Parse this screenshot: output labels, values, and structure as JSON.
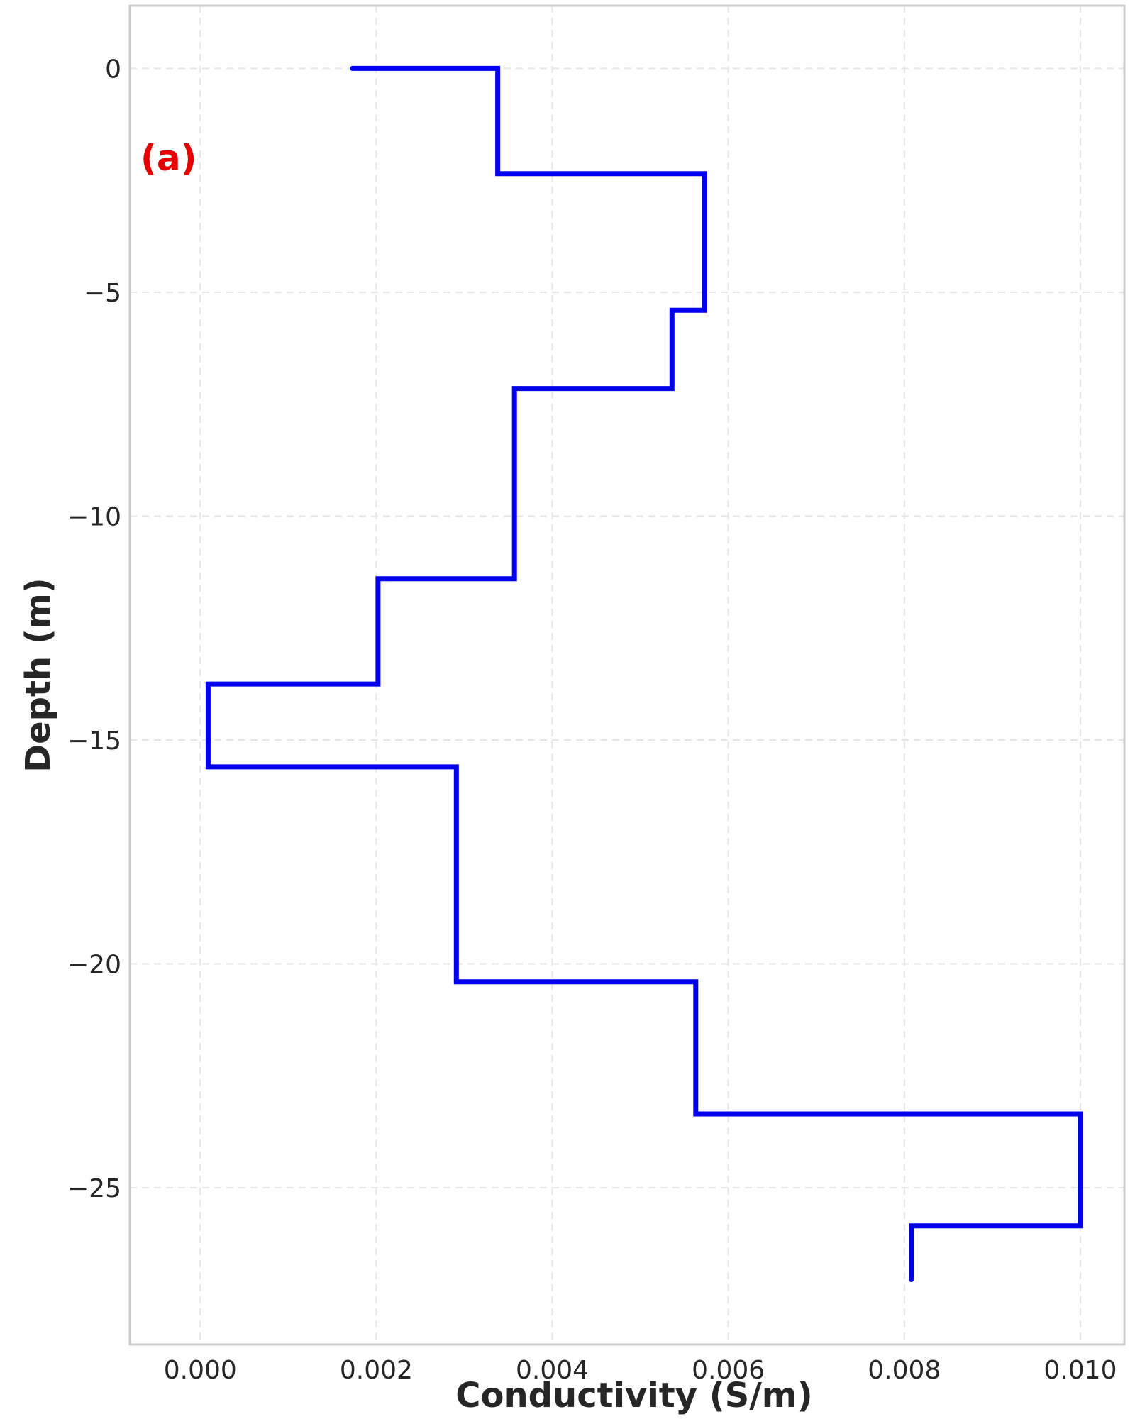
{
  "chart_data": {
    "type": "line",
    "xlabel": "Conductivity (S/m)",
    "ylabel": "Depth (m)",
    "annotation": "(a)",
    "annotation_color": "#e60000",
    "line_color": "#0000ee",
    "grid": true,
    "xlim": [
      -0.0008,
      0.0105
    ],
    "ylim": [
      -28.5,
      1.4
    ],
    "x_ticks": [
      {
        "value": 0.0,
        "label": "0.000"
      },
      {
        "value": 0.002,
        "label": "0.002"
      },
      {
        "value": 0.004,
        "label": "0.004"
      },
      {
        "value": 0.006,
        "label": "0.006"
      },
      {
        "value": 0.008,
        "label": "0.008"
      },
      {
        "value": 0.01,
        "label": "0.010"
      }
    ],
    "y_ticks": [
      {
        "value": 0,
        "label": "0"
      },
      {
        "value": -5,
        "label": "−5"
      },
      {
        "value": -10,
        "label": "−10"
      },
      {
        "value": -15,
        "label": "−15"
      },
      {
        "value": -20,
        "label": "−20"
      },
      {
        "value": -25,
        "label": "−25"
      }
    ],
    "series": [
      {
        "points": [
          {
            "x": 0.00173,
            "y": 0.0
          },
          {
            "x": 0.00338,
            "y": 0.0
          },
          {
            "x": 0.00338,
            "y": -2.35
          },
          {
            "x": 0.00573,
            "y": -2.35
          },
          {
            "x": 0.00573,
            "y": -5.4
          },
          {
            "x": 0.00536,
            "y": -5.4
          },
          {
            "x": 0.00536,
            "y": -7.15
          },
          {
            "x": 0.00357,
            "y": -7.15
          },
          {
            "x": 0.00357,
            "y": -11.4
          },
          {
            "x": 0.00202,
            "y": -11.4
          },
          {
            "x": 0.00202,
            "y": -13.75
          },
          {
            "x": 9e-05,
            "y": -13.75
          },
          {
            "x": 9e-05,
            "y": -15.6
          },
          {
            "x": 0.00291,
            "y": -15.6
          },
          {
            "x": 0.00291,
            "y": -20.4
          },
          {
            "x": 0.00563,
            "y": -20.4
          },
          {
            "x": 0.00563,
            "y": -23.35
          },
          {
            "x": 0.01,
            "y": -23.35
          },
          {
            "x": 0.01,
            "y": -25.85
          },
          {
            "x": 0.00808,
            "y": -25.85
          },
          {
            "x": 0.00808,
            "y": -27.05
          }
        ]
      }
    ]
  }
}
